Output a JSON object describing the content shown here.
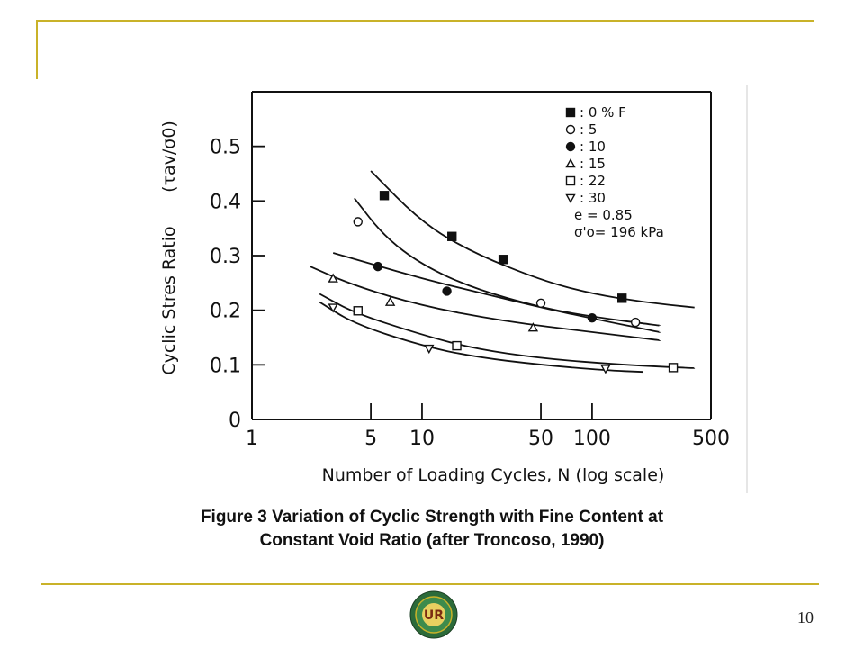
{
  "slide": {
    "caption_line1": "Figure 3 Variation of Cyclic Strength with Fine Content at",
    "caption_line2": "Constant Void Ratio (after Troncoso, 1990)",
    "page_number": "10",
    "logo_text": "UR",
    "accent_color": "#c9b229"
  },
  "chart_data": {
    "type": "line",
    "xlabel": "Number of Loading Cycles, N (log scale)",
    "ylabel": "Cyclic Stres Ratio",
    "ylabel_symbol": "(τav/σ0)",
    "xscale": "log",
    "xlim": [
      1,
      500
    ],
    "ylim": [
      0,
      0.6
    ],
    "x_ticks": [
      1,
      5,
      10,
      50,
      100,
      500
    ],
    "x_tick_labels": [
      "1",
      "5",
      "10",
      "50",
      "100",
      "500"
    ],
    "y_ticks": [
      0,
      0.1,
      0.2,
      0.3,
      0.4,
      0.5
    ],
    "y_tick_labels": [
      "0",
      "0.1",
      "0.2",
      "0.3",
      "0.4",
      "0.5"
    ],
    "grid": false,
    "legend_placement": "top-right",
    "series": [
      {
        "name": "0 % F",
        "legend_label": "0 % F",
        "marker": "square-filled",
        "curve": [
          [
            5,
            0.455
          ],
          [
            10,
            0.36
          ],
          [
            20,
            0.305
          ],
          [
            50,
            0.255
          ],
          [
            100,
            0.23
          ],
          [
            200,
            0.215
          ],
          [
            400,
            0.205
          ]
        ],
        "points": [
          [
            6,
            0.41
          ],
          [
            15,
            0.335
          ],
          [
            30,
            0.293
          ],
          [
            150,
            0.222
          ]
        ]
      },
      {
        "name": "5",
        "legend_label": "5",
        "marker": "circle-open",
        "curve": [
          [
            4,
            0.405
          ],
          [
            6,
            0.335
          ],
          [
            10,
            0.283
          ],
          [
            20,
            0.24
          ],
          [
            50,
            0.205
          ],
          [
            100,
            0.188
          ],
          [
            250,
            0.172
          ]
        ],
        "points": [
          [
            4.2,
            0.362
          ],
          [
            50,
            0.213
          ],
          [
            180,
            0.178
          ]
        ]
      },
      {
        "name": "10",
        "legend_label": "10",
        "marker": "circle-filled",
        "curve": [
          [
            3,
            0.305
          ],
          [
            5,
            0.285
          ],
          [
            10,
            0.258
          ],
          [
            20,
            0.235
          ],
          [
            50,
            0.205
          ],
          [
            100,
            0.185
          ],
          [
            250,
            0.16
          ]
        ],
        "points": [
          [
            5.5,
            0.28
          ],
          [
            14,
            0.235
          ],
          [
            100,
            0.186
          ]
        ]
      },
      {
        "name": "15",
        "legend_label": "15",
        "marker": "triangle-open",
        "curve": [
          [
            2.2,
            0.28
          ],
          [
            4,
            0.245
          ],
          [
            10,
            0.208
          ],
          [
            30,
            0.18
          ],
          [
            100,
            0.16
          ],
          [
            250,
            0.145
          ]
        ],
        "points": [
          [
            3,
            0.258
          ],
          [
            6.5,
            0.215
          ],
          [
            45,
            0.168
          ]
        ]
      },
      {
        "name": "22",
        "legend_label": "22",
        "marker": "square-open",
        "curve": [
          [
            2.5,
            0.23
          ],
          [
            4,
            0.195
          ],
          [
            10,
            0.155
          ],
          [
            20,
            0.13
          ],
          [
            50,
            0.112
          ],
          [
            150,
            0.1
          ],
          [
            400,
            0.094
          ]
        ],
        "points": [
          [
            4.2,
            0.199
          ],
          [
            16,
            0.135
          ],
          [
            300,
            0.095
          ]
        ]
      },
      {
        "name": "30",
        "legend_label": "30",
        "marker": "triangle-down-open",
        "curve": [
          [
            2.5,
            0.215
          ],
          [
            4,
            0.175
          ],
          [
            10,
            0.135
          ],
          [
            20,
            0.115
          ],
          [
            50,
            0.1
          ],
          [
            120,
            0.09
          ],
          [
            200,
            0.087
          ]
        ],
        "points": [
          [
            3,
            0.205
          ],
          [
            11,
            0.13
          ],
          [
            120,
            0.093
          ]
        ]
      }
    ],
    "annotations": [
      "e  = 0.85",
      "σ'o= 196 kPa"
    ]
  }
}
